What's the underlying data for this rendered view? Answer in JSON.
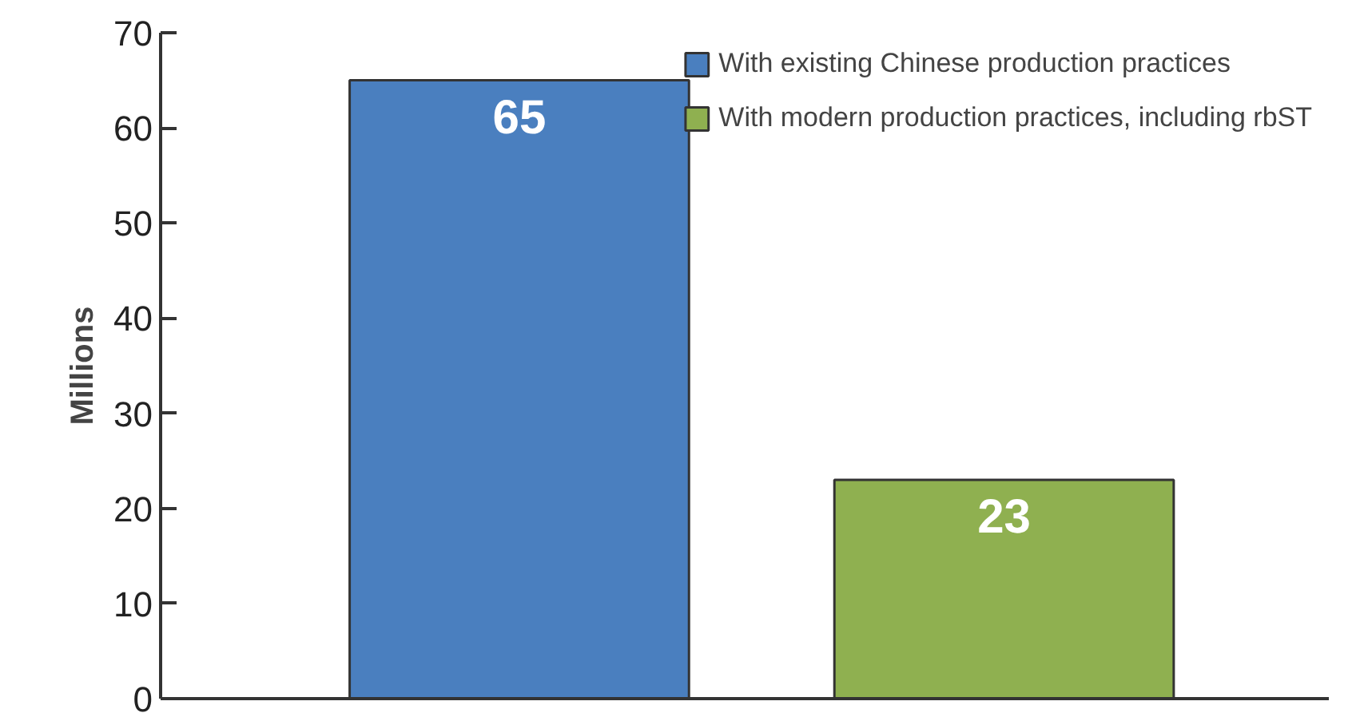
{
  "chart_data": {
    "type": "bar",
    "ylabel": "Millions",
    "categories": [
      null,
      null
    ],
    "series": [
      {
        "name": "With existing Chinese production practices",
        "color": "#4a7fbf",
        "values": [
          65,
          null
        ]
      },
      {
        "name": "With modern production practices, including rbST",
        "color": "#8fb050",
        "values": [
          null,
          23
        ]
      }
    ],
    "ylim": [
      0,
      70
    ],
    "yticks": [
      0,
      10,
      20,
      30,
      40,
      50,
      60,
      70
    ],
    "data_labels": true,
    "grid": false,
    "legend": "top right",
    "tick_labels": "y"
  }
}
